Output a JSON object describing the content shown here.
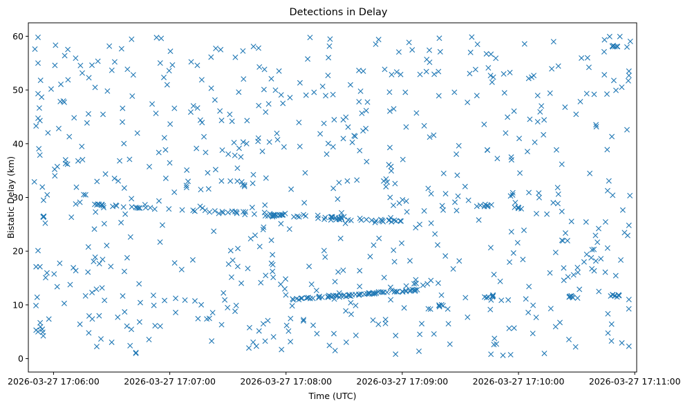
{
  "chart_data": {
    "type": "scatter",
    "title": "Detections in Delay",
    "xlabel": "Time (UTC)",
    "ylabel": "Bistatic Delay (km)",
    "marker": "x",
    "marker_color": "#1f77b4",
    "x_unit": "seconds after 2026-03-27 17:05:00 UTC",
    "xlim": [
      47,
      361
    ],
    "ylim": [
      -2.5,
      62.5
    ],
    "x_ticks": [
      60,
      120,
      180,
      240,
      300,
      360
    ],
    "x_tick_labels": [
      "2026-03-27 17:06:00",
      "2026-03-27 17:07:00",
      "2026-03-27 17:08:00",
      "2026-03-27 17:09:00",
      "2026-03-27 17:10:00",
      "2026-03-27 17:11:00"
    ],
    "y_ticks": [
      0,
      10,
      20,
      30,
      40,
      50,
      60
    ],
    "y_tick_labels": [
      "0",
      "10",
      "20",
      "30",
      "40",
      "50",
      "60"
    ],
    "time_span_s": [
      50,
      358
    ],
    "random_points": {
      "count": 650,
      "y_range": [
        0.5,
        60
      ],
      "note": "dense uniformly scattered clutter detections"
    },
    "tracks": [
      {
        "name": "upper-track",
        "x_start": 81,
        "x_end": 240,
        "y_start": 28.5,
        "y_end": 25.5,
        "count": 95,
        "jitter": 0.5
      },
      {
        "name": "lower-track",
        "x_start": 183,
        "x_end": 248,
        "y_start": 11.0,
        "y_end": 12.8,
        "count": 70,
        "jitter": 0.35
      }
    ],
    "clusters": [
      {
        "x_center": 55,
        "y_center": 26.5,
        "count": 4,
        "spread_x": 1.0,
        "spread_y": 0.3
      },
      {
        "x_center": 260,
        "y_center": 9.8,
        "count": 6,
        "spread_x": 3.5,
        "spread_y": 0.3
      },
      {
        "x_center": 283,
        "y_center": 28.6,
        "count": 8,
        "spread_x": 5,
        "spread_y": 0.5
      },
      {
        "x_center": 285,
        "y_center": 11.5,
        "count": 8,
        "spread_x": 4,
        "spread_y": 0.8
      },
      {
        "x_center": 300,
        "y_center": 28.2,
        "count": 5,
        "spread_x": 3,
        "spread_y": 0.4
      },
      {
        "x_center": 327,
        "y_center": 11.6,
        "count": 6,
        "spread_x": 3,
        "spread_y": 0.3
      },
      {
        "x_center": 350,
        "y_center": 11.8,
        "count": 8,
        "spread_x": 3,
        "spread_y": 0.3
      },
      {
        "x_center": 349,
        "y_center": 58.2,
        "count": 6,
        "spread_x": 3,
        "spread_y": 0.4
      }
    ],
    "edge_points": [
      {
        "x": 52,
        "y": 59.8
      },
      {
        "x": 52,
        "y": 55
      },
      {
        "x": 52,
        "y": 49.3
      },
      {
        "x": 51,
        "y": 43.3
      },
      {
        "x": 53,
        "y": 44.3
      },
      {
        "x": 52,
        "y": 20.1
      },
      {
        "x": 51,
        "y": 17.1
      },
      {
        "x": 53,
        "y": 17.1
      },
      {
        "x": 51,
        "y": 5.3
      },
      {
        "x": 52,
        "y": 5.0
      },
      {
        "x": 357,
        "y": 53.5
      },
      {
        "x": 357,
        "y": 52.7
      },
      {
        "x": 357,
        "y": 24.8
      },
      {
        "x": 357,
        "y": 11
      },
      {
        "x": 357,
        "y": 2.3
      },
      {
        "x": 356,
        "y": 42.6
      },
      {
        "x": 356,
        "y": 58
      }
    ]
  }
}
